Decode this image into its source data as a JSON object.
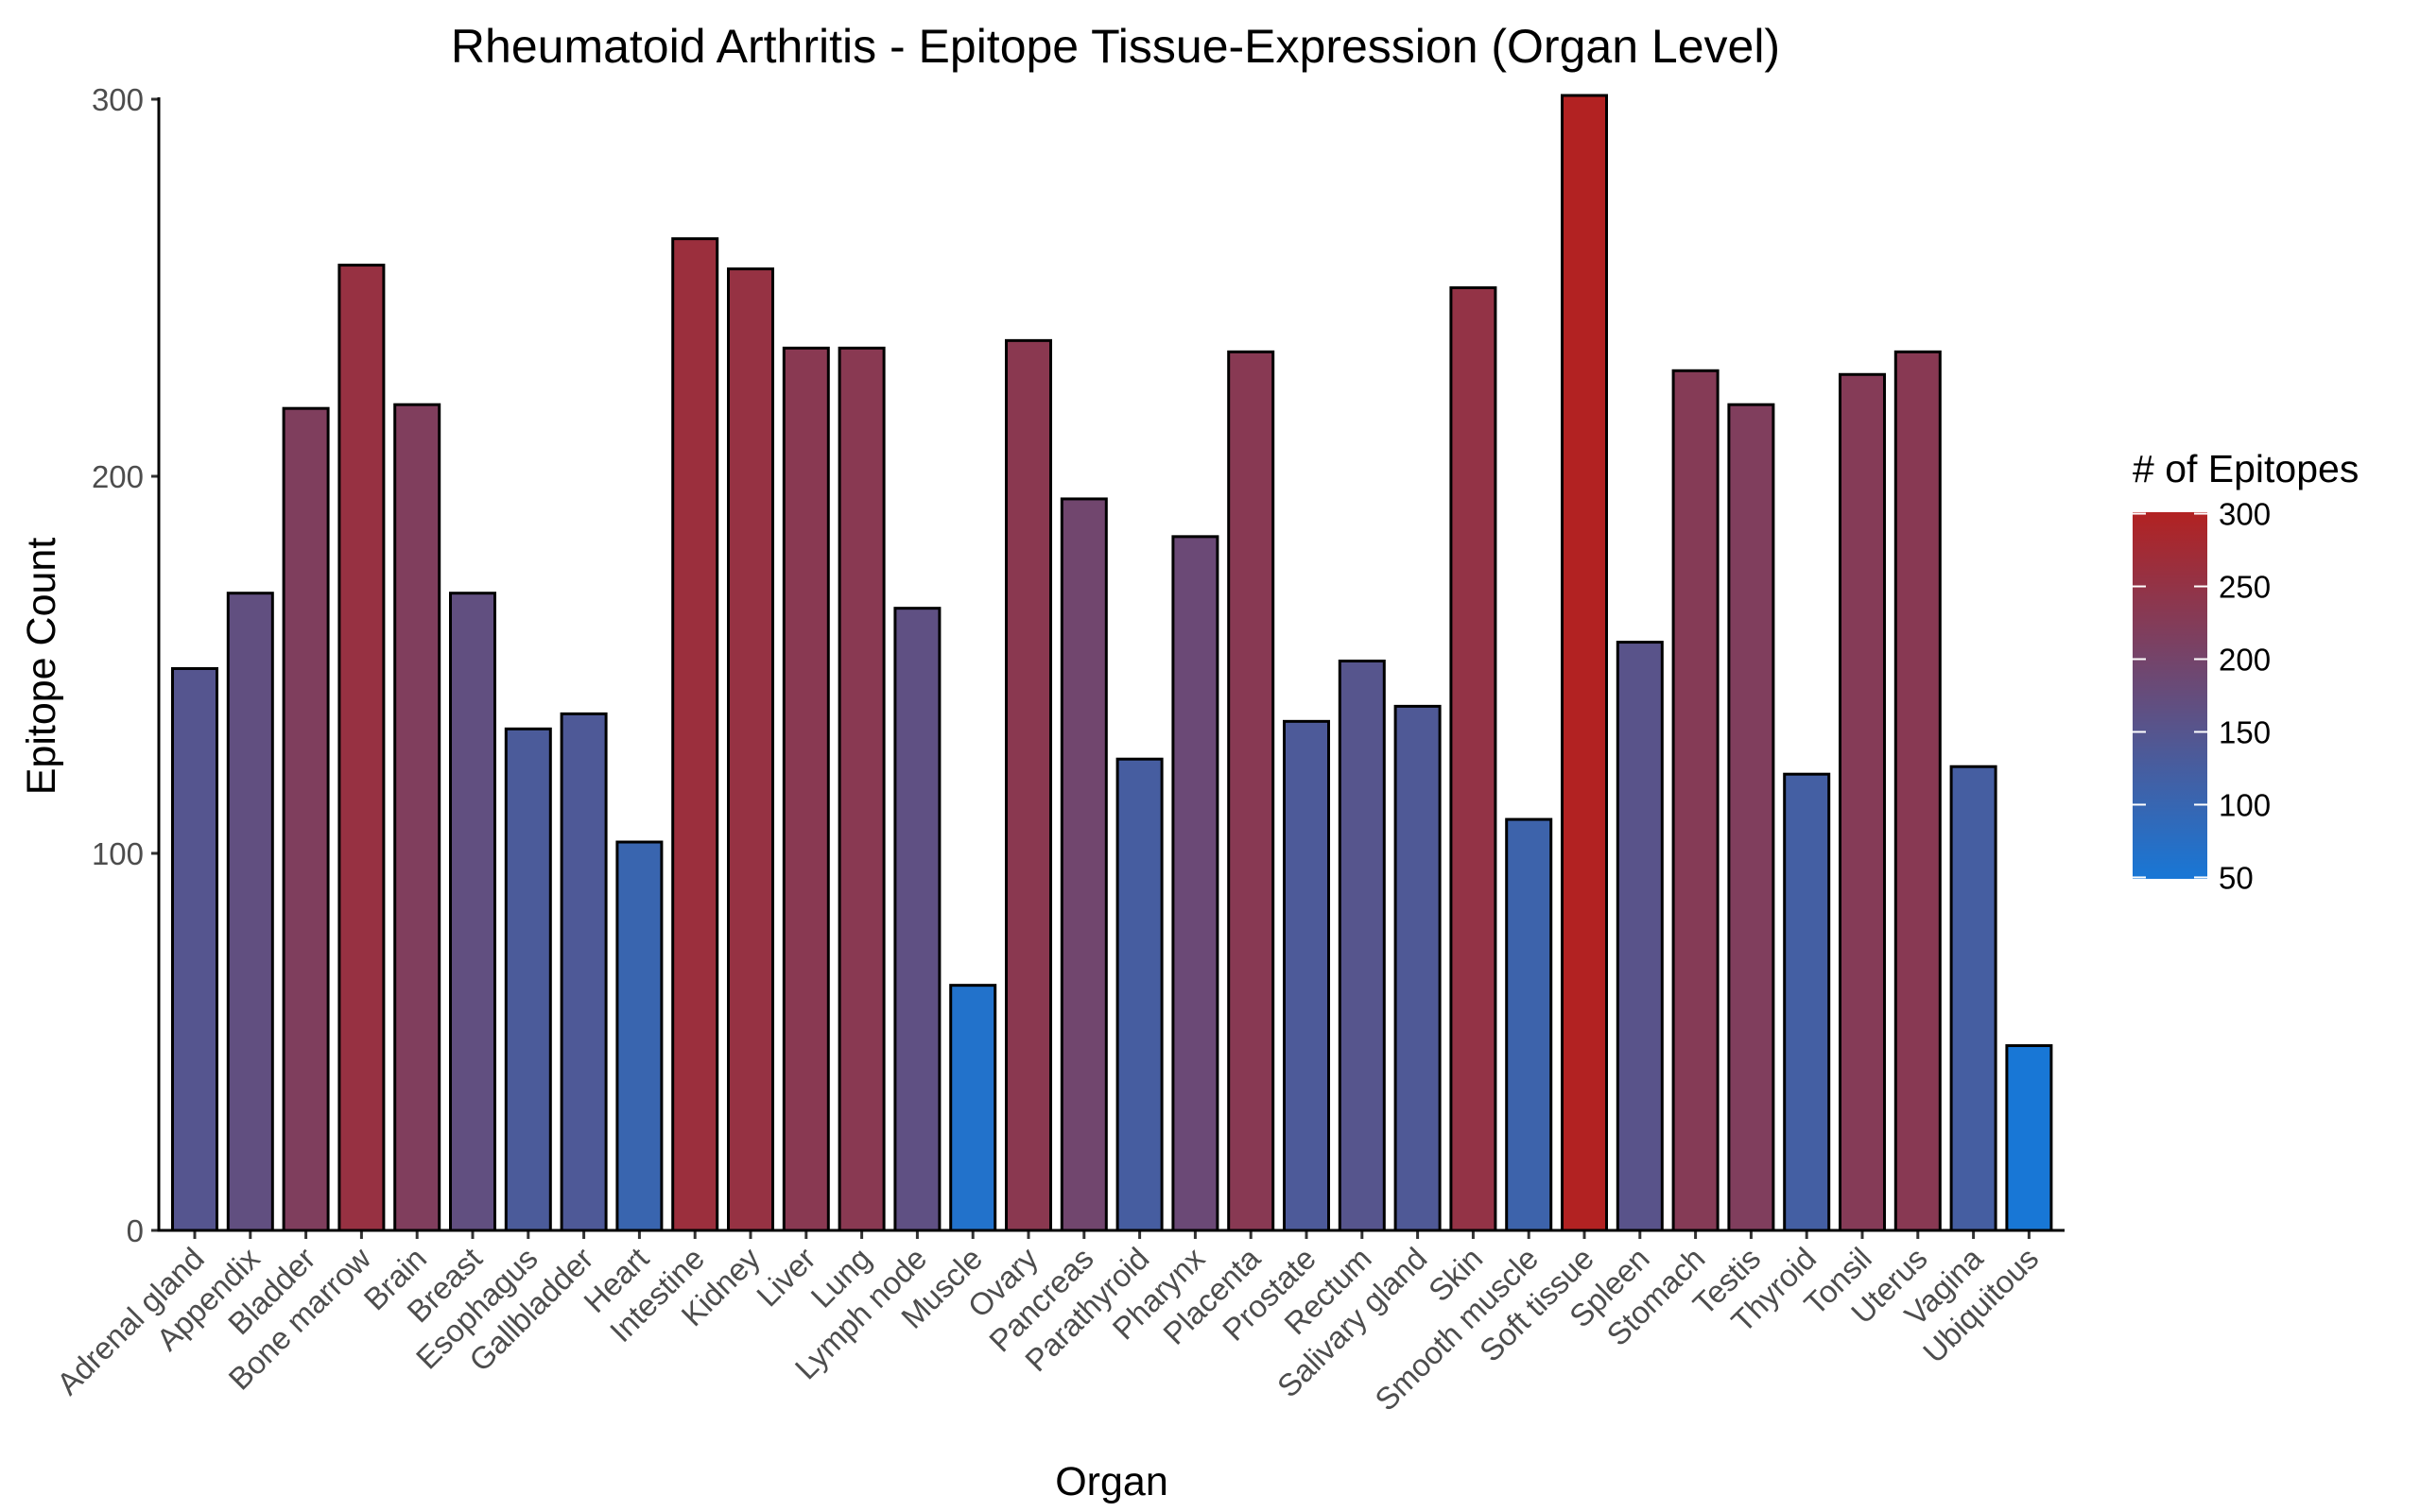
{
  "chart_data": {
    "type": "bar",
    "title": "Rheumatoid Arthritis - Epitope Tissue-Expression (Organ Level)",
    "xlabel": "Organ",
    "ylabel": "Epitope Count",
    "ylim": [
      0,
      300
    ],
    "yticks": [
      "0",
      "100",
      "200",
      "300"
    ],
    "grid": false,
    "categories": [
      "Adrenal gland",
      "Appendix",
      "Bladder",
      "Bone marrow",
      "Brain",
      "Breast",
      "Esophagus",
      "Gallbladder",
      "Heart",
      "Intestine",
      "Kidney",
      "Liver",
      "Lung",
      "Lymph node",
      "Muscle",
      "Ovary",
      "Pancreas",
      "Parathyroid",
      "Pharynx",
      "Placenta",
      "Prostate",
      "Rectum",
      "Salivary gland",
      "Skin",
      "Smooth muscle",
      "Soft tissue",
      "Spleen",
      "Stomach",
      "Testis",
      "Thyroid",
      "Tonsil",
      "Uterus",
      "Vagina",
      "Ubiquitous"
    ],
    "values": [
      149,
      169,
      218,
      256,
      219,
      169,
      133,
      137,
      103,
      263,
      255,
      234,
      234,
      165,
      65,
      236,
      194,
      125,
      184,
      233,
      135,
      151,
      139,
      250,
      109,
      301,
      156,
      228,
      219,
      121,
      227,
      233,
      123,
      49
    ],
    "legend": {
      "title": "# of Epitopes",
      "placement": "right",
      "ticks": [
        "300",
        "250",
        "200",
        "150",
        "100",
        "50"
      ],
      "range": [
        49,
        301
      ],
      "color_low": "#1877d6",
      "color_high": "#b22222"
    },
    "bar_outline": "#000000"
  }
}
